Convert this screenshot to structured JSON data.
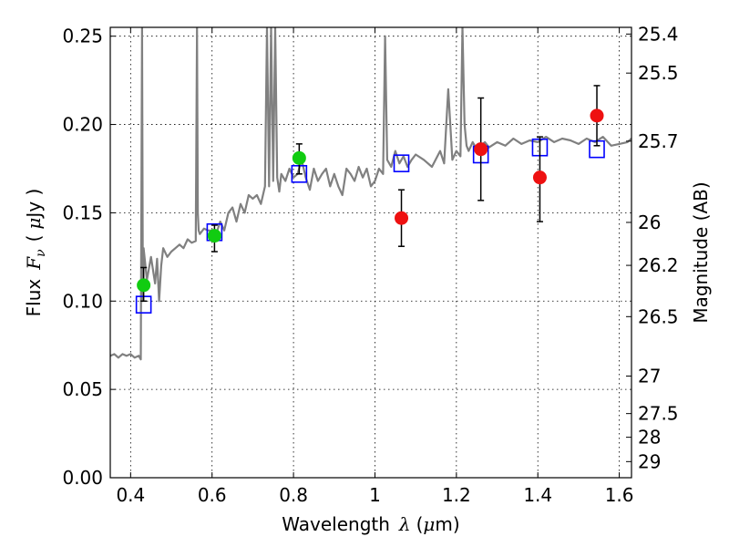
{
  "chart_data": {
    "type": "scatter",
    "xlabel_prefix": "Wavelength",
    "xlabel_symbol": "λ",
    "xlabel_unit_open": "(",
    "xlabel_unit_mu": "μ",
    "xlabel_unit_rest": "m)",
    "ylabel_prefix": "Flux",
    "ylabel_symbol": "F",
    "ylabel_subscript": "ν",
    "ylabel_unit_open": "(",
    "ylabel_unit_mu": "μ",
    "ylabel_unit_rest": "Jy )",
    "y2label": "Magnitude (AB)",
    "xlim": [
      0.35,
      1.63
    ],
    "ylim": [
      0.0,
      0.255
    ],
    "grid": true,
    "x_ticks": [
      {
        "value": 0.4,
        "label": "0.4"
      },
      {
        "value": 0.6,
        "label": "0.6"
      },
      {
        "value": 0.8,
        "label": "0.8"
      },
      {
        "value": 1.0,
        "label": "1"
      },
      {
        "value": 1.2,
        "label": "1.2"
      },
      {
        "value": 1.4,
        "label": "1.4"
      },
      {
        "value": 1.6,
        "label": "1.6"
      }
    ],
    "y_ticks": [
      {
        "value": 0.0,
        "label": "0.00"
      },
      {
        "value": 0.05,
        "label": "0.05"
      },
      {
        "value": 0.1,
        "label": "0.10"
      },
      {
        "value": 0.15,
        "label": "0.15"
      },
      {
        "value": 0.2,
        "label": "0.20"
      },
      {
        "value": 0.25,
        "label": "0.25"
      }
    ],
    "y2_ticks": [
      {
        "value": 25.4,
        "label": "25.4"
      },
      {
        "value": 25.5,
        "label": "25.5"
      },
      {
        "value": 25.7,
        "label": "25.7"
      },
      {
        "value": 26.0,
        "label": "26"
      },
      {
        "value": 26.2,
        "label": "26.2"
      },
      {
        "value": 26.5,
        "label": "26.5"
      },
      {
        "value": 27.0,
        "label": "27"
      },
      {
        "value": 27.5,
        "label": "27.5"
      },
      {
        "value": 28.0,
        "label": "28"
      },
      {
        "value": 29.0,
        "label": "29"
      }
    ],
    "colors": {
      "model": "#808080",
      "green": "#11cc11",
      "red": "#ee1111",
      "box": "#0000ff",
      "errorbar": "#000000"
    },
    "model_spectrum": {
      "x": [
        0.35,
        0.36,
        0.37,
        0.38,
        0.39,
        0.4,
        0.41,
        0.42,
        0.425,
        0.428,
        0.43,
        0.432,
        0.44,
        0.45,
        0.46,
        0.465,
        0.47,
        0.475,
        0.48,
        0.49,
        0.5,
        0.51,
        0.52,
        0.53,
        0.54,
        0.55,
        0.56,
        0.563,
        0.565,
        0.567,
        0.57,
        0.58,
        0.59,
        0.6,
        0.61,
        0.62,
        0.63,
        0.64,
        0.65,
        0.66,
        0.67,
        0.68,
        0.69,
        0.7,
        0.71,
        0.72,
        0.73,
        0.735,
        0.74,
        0.745,
        0.75,
        0.755,
        0.76,
        0.765,
        0.77,
        0.78,
        0.79,
        0.8,
        0.81,
        0.82,
        0.83,
        0.84,
        0.85,
        0.86,
        0.87,
        0.88,
        0.89,
        0.9,
        0.91,
        0.92,
        0.93,
        0.94,
        0.95,
        0.96,
        0.97,
        0.98,
        0.99,
        1.0,
        1.01,
        1.02,
        1.025,
        1.03,
        1.04,
        1.05,
        1.06,
        1.07,
        1.08,
        1.09,
        1.1,
        1.12,
        1.14,
        1.16,
        1.17,
        1.18,
        1.19,
        1.2,
        1.21,
        1.215,
        1.22,
        1.225,
        1.23,
        1.24,
        1.25,
        1.26,
        1.27,
        1.28,
        1.3,
        1.32,
        1.34,
        1.36,
        1.38,
        1.4,
        1.42,
        1.44,
        1.46,
        1.48,
        1.5,
        1.52,
        1.54,
        1.56,
        1.58,
        1.6,
        1.62,
        1.63
      ],
      "y": [
        0.069,
        0.07,
        0.068,
        0.07,
        0.069,
        0.07,
        0.068,
        0.069,
        0.067,
        0.255,
        0.1,
        0.13,
        0.112,
        0.125,
        0.11,
        0.124,
        0.1,
        0.12,
        0.13,
        0.125,
        0.128,
        0.13,
        0.132,
        0.13,
        0.135,
        0.133,
        0.134,
        0.255,
        0.15,
        0.14,
        0.138,
        0.141,
        0.14,
        0.14,
        0.138,
        0.145,
        0.14,
        0.15,
        0.153,
        0.145,
        0.155,
        0.15,
        0.16,
        0.158,
        0.16,
        0.155,
        0.165,
        0.255,
        0.165,
        0.255,
        0.168,
        0.255,
        0.17,
        0.162,
        0.172,
        0.168,
        0.175,
        0.17,
        0.172,
        0.18,
        0.17,
        0.163,
        0.175,
        0.168,
        0.172,
        0.175,
        0.165,
        0.172,
        0.165,
        0.16,
        0.175,
        0.172,
        0.168,
        0.176,
        0.17,
        0.175,
        0.165,
        0.168,
        0.175,
        0.172,
        0.25,
        0.18,
        0.176,
        0.185,
        0.178,
        0.182,
        0.176,
        0.18,
        0.183,
        0.18,
        0.176,
        0.185,
        0.178,
        0.22,
        0.18,
        0.185,
        0.182,
        0.255,
        0.2,
        0.188,
        0.185,
        0.19,
        0.186,
        0.188,
        0.19,
        0.187,
        0.19,
        0.188,
        0.192,
        0.189,
        0.191,
        0.19,
        0.193,
        0.19,
        0.192,
        0.191,
        0.189,
        0.192,
        0.19,
        0.193,
        0.188,
        0.189,
        0.19,
        0.192
      ]
    },
    "observed_green": [
      {
        "x": 0.432,
        "y": 0.109,
        "yerr_low": 0.1,
        "yerr_high": 0.119
      },
      {
        "x": 0.606,
        "y": 0.137,
        "yerr_low": 0.128,
        "yerr_high": 0.143
      },
      {
        "x": 0.814,
        "y": 0.181,
        "yerr_low": 0.172,
        "yerr_high": 0.189
      }
    ],
    "observed_red": [
      {
        "x": 1.065,
        "y": 0.147,
        "yerr_low": 0.131,
        "yerr_high": 0.163
      },
      {
        "x": 1.26,
        "y": 0.186,
        "yerr_low": 0.157,
        "yerr_high": 0.215
      },
      {
        "x": 1.405,
        "y": 0.17,
        "yerr_low": 0.145,
        "yerr_high": 0.193
      },
      {
        "x": 1.545,
        "y": 0.205,
        "yerr_low": 0.188,
        "yerr_high": 0.222
      }
    ],
    "model_boxes": [
      {
        "x": 0.432,
        "y": 0.098
      },
      {
        "x": 0.606,
        "y": 0.139
      },
      {
        "x": 0.814,
        "y": 0.172
      },
      {
        "x": 1.065,
        "y": 0.178
      },
      {
        "x": 1.26,
        "y": 0.183
      },
      {
        "x": 1.405,
        "y": 0.187
      },
      {
        "x": 1.545,
        "y": 0.186
      }
    ]
  }
}
